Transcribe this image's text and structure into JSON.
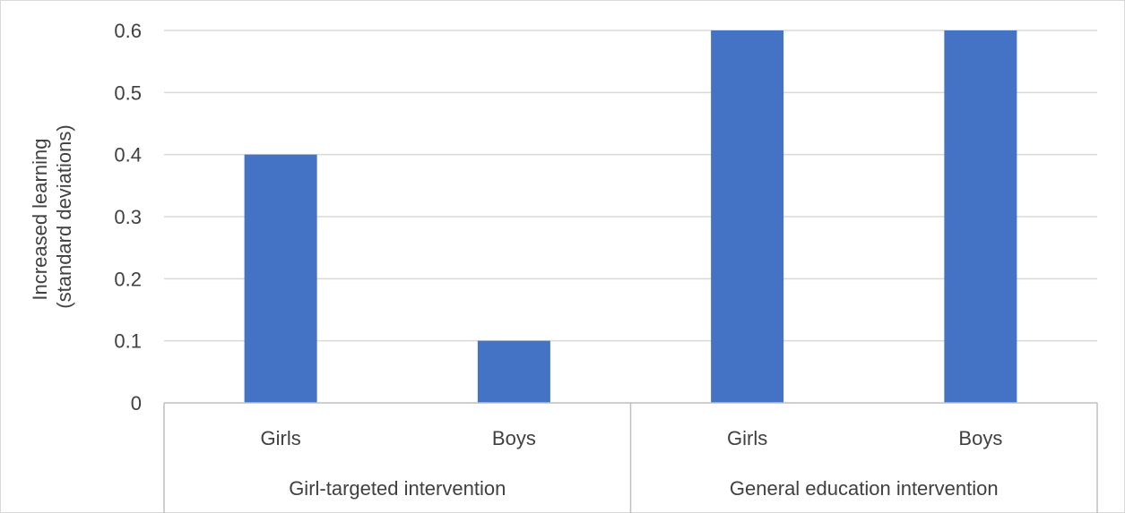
{
  "chart_data": {
    "type": "bar",
    "title": "",
    "ylabel_lines": [
      "Increased learning",
      "(standard deviations)"
    ],
    "ylim": [
      0,
      0.6
    ],
    "yticks": [
      "0",
      "0.1",
      "0.2",
      "0.3",
      "0.4",
      "0.5",
      "0.6"
    ],
    "grid": true,
    "legend": "none",
    "groups": [
      {
        "label": "Girl-targeted intervention",
        "categories": [
          "Girls",
          "Boys"
        ],
        "values": [
          0.4,
          0.1
        ]
      },
      {
        "label": "General education intervention",
        "categories": [
          "Girls",
          "Boys"
        ],
        "values": [
          0.6,
          0.6
        ]
      }
    ],
    "colors": {
      "bar": "#4472C4",
      "grid": "#D9D9D9",
      "axis": "#BFBFBF",
      "text": "#404040"
    }
  }
}
